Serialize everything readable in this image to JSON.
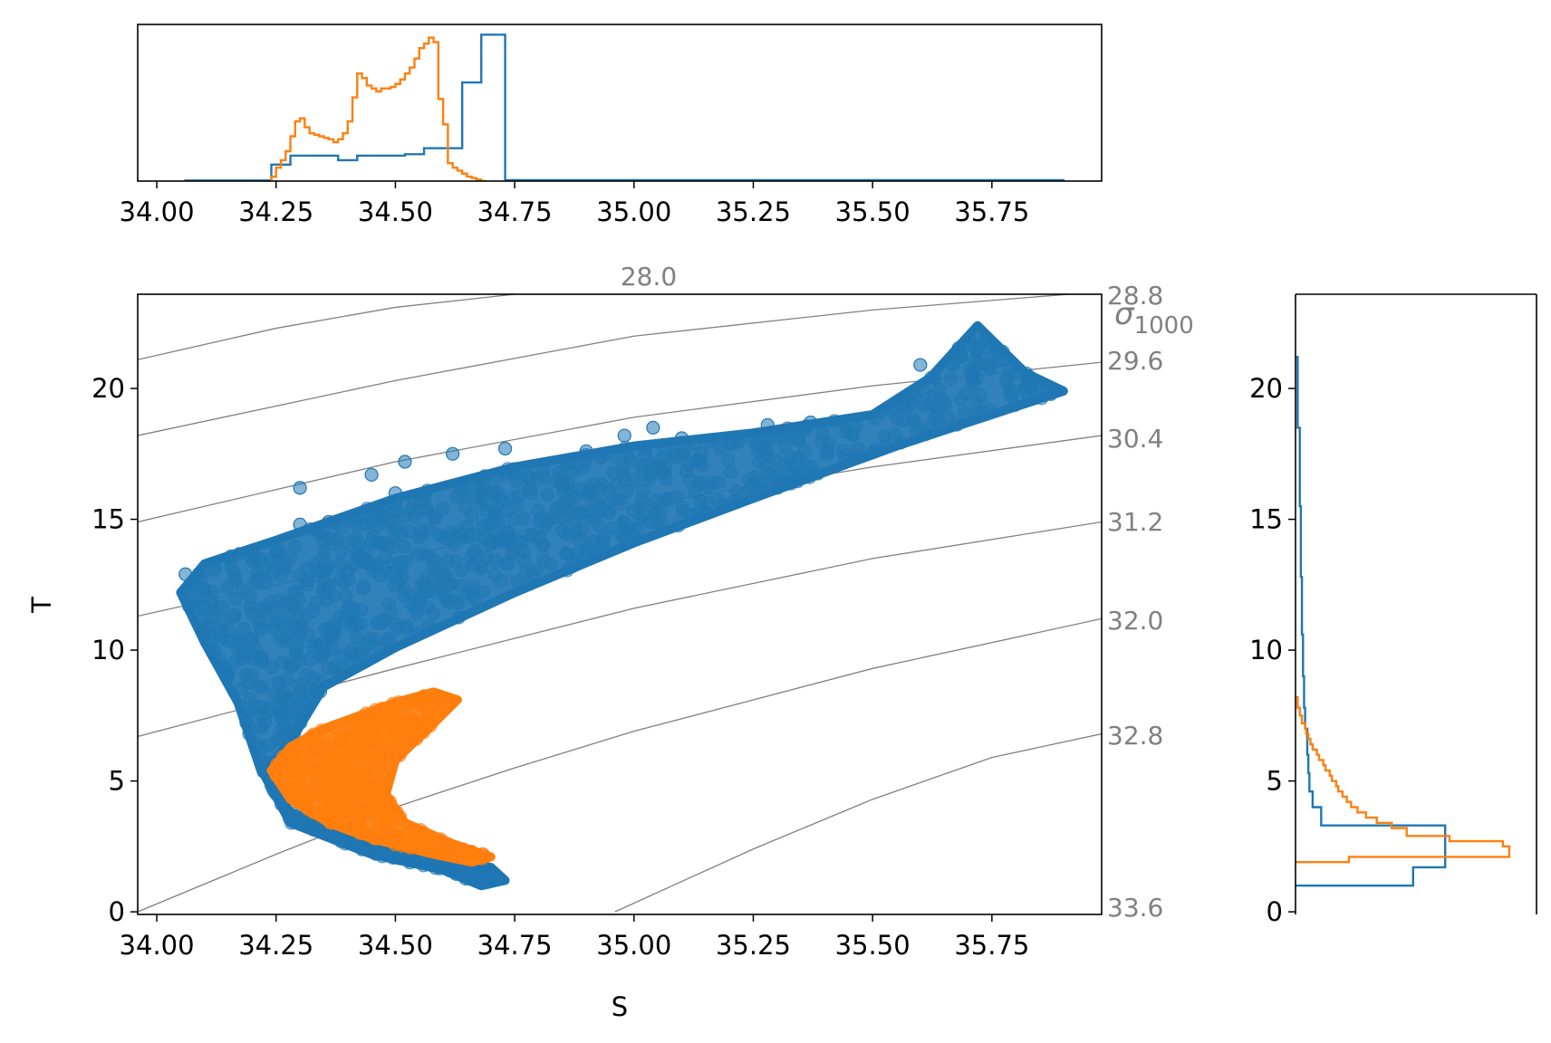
{
  "chart_data": [
    {
      "panel": "top-histogram",
      "type": "histogram",
      "xlim": [
        33.96,
        35.98
      ],
      "x_ticks": [
        "34.00",
        "34.25",
        "34.50",
        "34.75",
        "35.00",
        "35.25",
        "35.50",
        "35.75"
      ],
      "series": [
        {
          "color": "#1f77b4",
          "edges": [
            34.06,
            34.24,
            34.28,
            34.34,
            34.38,
            34.42,
            34.48,
            34.52,
            34.56,
            34.6,
            34.64,
            34.68,
            34.73,
            35.9
          ],
          "values": [
            0.004,
            0.11,
            0.17,
            0.17,
            0.14,
            0.17,
            0.17,
            0.18,
            0.22,
            0.22,
            0.66,
            0.98,
            0.006
          ]
        },
        {
          "color": "#ff7f0e",
          "edges": [
            34.24,
            34.25,
            34.26,
            34.27,
            34.28,
            34.29,
            34.3,
            34.31,
            34.32,
            34.33,
            34.34,
            34.35,
            34.36,
            34.37,
            34.38,
            34.39,
            34.4,
            34.41,
            34.42,
            34.43,
            34.44,
            34.45,
            34.46,
            34.47,
            34.48,
            34.49,
            34.5,
            34.51,
            34.52,
            34.53,
            34.54,
            34.55,
            34.56,
            34.57,
            34.58,
            34.59,
            34.6,
            34.61,
            34.62,
            34.63,
            34.64,
            34.65,
            34.66,
            34.67,
            34.68,
            34.69
          ],
          "values": [
            0.03,
            0.09,
            0.14,
            0.2,
            0.3,
            0.4,
            0.42,
            0.36,
            0.32,
            0.31,
            0.3,
            0.29,
            0.28,
            0.26,
            0.28,
            0.32,
            0.4,
            0.56,
            0.72,
            0.69,
            0.64,
            0.62,
            0.6,
            0.62,
            0.62,
            0.63,
            0.65,
            0.68,
            0.72,
            0.76,
            0.82,
            0.89,
            0.92,
            0.96,
            0.93,
            0.55,
            0.38,
            0.12,
            0.09,
            0.07,
            0.05,
            0.03,
            0.02,
            0.01,
            0.0
          ]
        }
      ]
    },
    {
      "panel": "ts-scatter",
      "type": "scatter",
      "xlabel": "S",
      "ylabel": "T",
      "xlim": [
        33.96,
        35.98
      ],
      "ylim": [
        -0.1,
        23.6
      ],
      "x_ticks": [
        "34.00",
        "34.25",
        "34.50",
        "34.75",
        "35.00",
        "35.25",
        "35.50",
        "35.75"
      ],
      "y_ticks": [
        "0",
        "5",
        "10",
        "15",
        "20"
      ],
      "density_axis_label": "σ",
      "density_axis_subscript": "1000",
      "density_contours": [
        {
          "label": "28.0",
          "points": [
            [
              33.96,
              21.1
            ],
            [
              34.25,
              22.3
            ],
            [
              34.5,
              23.1
            ],
            [
              34.75,
              23.6
            ]
          ]
        },
        {
          "label": "28.8",
          "points": [
            [
              33.96,
              18.2
            ],
            [
              34.5,
              20.3
            ],
            [
              35.0,
              22.0
            ],
            [
              35.5,
              23.0
            ],
            [
              35.98,
              23.7
            ]
          ]
        },
        {
          "label": "29.6",
          "points": [
            [
              33.96,
              14.9
            ],
            [
              34.5,
              17.2
            ],
            [
              35.0,
              18.9
            ],
            [
              35.5,
              20.1
            ],
            [
              35.98,
              21.0
            ]
          ]
        },
        {
          "label": "30.4",
          "points": [
            [
              33.96,
              11.3
            ],
            [
              34.5,
              13.5
            ],
            [
              35.0,
              15.5
            ],
            [
              35.5,
              17.0
            ],
            [
              35.98,
              18.2
            ]
          ]
        },
        {
          "label": "31.2",
          "points": [
            [
              33.96,
              6.7
            ],
            [
              34.5,
              9.3
            ],
            [
              35.0,
              11.6
            ],
            [
              35.5,
              13.5
            ],
            [
              35.98,
              14.9
            ]
          ]
        },
        {
          "label": "32.0",
          "points": [
            [
              33.96,
              0.0
            ],
            [
              34.25,
              2.2
            ],
            [
              34.5,
              4.0
            ],
            [
              34.75,
              5.5
            ],
            [
              35.0,
              6.9
            ],
            [
              35.5,
              9.3
            ],
            [
              35.98,
              11.2
            ]
          ]
        },
        {
          "label": "32.8",
          "points": [
            [
              34.96,
              0.0
            ],
            [
              35.25,
              2.4
            ],
            [
              35.5,
              4.3
            ],
            [
              35.75,
              5.9
            ],
            [
              35.98,
              6.8
            ]
          ]
        },
        {
          "label": "33.6",
          "points": []
        }
      ],
      "series": [
        {
          "color": "#1f77b4",
          "regions": [
            {
              "kind": "band",
              "points": [
                [
                  34.05,
                  12.2
                ],
                [
                  34.1,
                  13.3
                ],
                [
                  34.25,
                  14.2
                ],
                [
                  34.5,
                  15.8
                ],
                [
                  34.75,
                  17.0
                ],
                [
                  35.0,
                  17.8
                ],
                [
                  35.25,
                  18.3
                ],
                [
                  35.5,
                  19.0
                ],
                [
                  35.62,
                  20.4
                ],
                [
                  35.72,
                  22.4
                ],
                [
                  35.82,
                  20.6
                ],
                [
                  35.9,
                  19.9
                ],
                [
                  35.8,
                  19.3
                ],
                [
                  35.55,
                  17.8
                ],
                [
                  35.25,
                  15.8
                ],
                [
                  35.0,
                  14.1
                ],
                [
                  34.75,
                  12.2
                ],
                [
                  34.5,
                  10.1
                ],
                [
                  34.35,
                  8.6
                ],
                [
                  34.28,
                  6.5
                ],
                [
                  34.22,
                  5.3
                ],
                [
                  34.17,
                  8.0
                ],
                [
                  34.1,
                  10.3
                ]
              ]
            },
            {
              "kind": "tail",
              "points": [
                [
                  34.22,
                  5.4
                ],
                [
                  34.28,
                  3.8
                ],
                [
                  34.45,
                  2.7
                ],
                [
                  34.62,
                  2.0
                ],
                [
                  34.7,
                  1.7
                ],
                [
                  34.73,
                  1.2
                ],
                [
                  34.68,
                  1.0
                ],
                [
                  34.6,
                  1.6
                ],
                [
                  34.45,
                  2.2
                ],
                [
                  34.28,
                  3.4
                ]
              ]
            },
            {
              "kind": "outliers",
              "points": [
                [
                  35.6,
                  20.9
                ],
                [
                  35.63,
                  20.4
                ],
                [
                  35.56,
                  19.4
                ],
                [
                  35.37,
                  18.7
                ],
                [
                  35.28,
                  18.6
                ],
                [
                  35.04,
                  18.5
                ],
                [
                  34.98,
                  18.2
                ],
                [
                  34.73,
                  17.7
                ],
                [
                  34.62,
                  17.5
                ],
                [
                  34.52,
                  17.2
                ],
                [
                  34.45,
                  16.7
                ],
                [
                  34.3,
                  16.2
                ],
                [
                  34.36,
                  14.9
                ],
                [
                  34.06,
                  12.9
                ],
                [
                  34.1,
                  12.3
                ],
                [
                  34.3,
                  14.8
                ],
                [
                  34.5,
                  16.0
                ],
                [
                  34.9,
                  17.6
                ],
                [
                  35.1,
                  18.1
                ],
                [
                  35.2,
                  17.9
                ]
              ]
            }
          ]
        },
        {
          "color": "#ff7f0e",
          "regions": [
            {
              "kind": "band",
              "points": [
                [
                  34.24,
                  5.4
                ],
                [
                  34.28,
                  6.3
                ],
                [
                  34.35,
                  7.0
                ],
                [
                  34.44,
                  7.6
                ],
                [
                  34.5,
                  8.0
                ],
                [
                  34.58,
                  8.4
                ],
                [
                  34.63,
                  8.1
                ],
                [
                  34.58,
                  7.2
                ],
                [
                  34.5,
                  5.8
                ],
                [
                  34.48,
                  4.5
                ],
                [
                  34.52,
                  3.4
                ],
                [
                  34.62,
                  2.6
                ],
                [
                  34.7,
                  2.1
                ],
                [
                  34.66,
                  1.9
                ],
                [
                  34.58,
                  2.2
                ],
                [
                  34.45,
                  2.8
                ],
                [
                  34.36,
                  3.4
                ],
                [
                  34.28,
                  4.3
                ]
              ]
            }
          ]
        }
      ]
    },
    {
      "panel": "right-histogram",
      "type": "histogram",
      "orientation": "horizontal",
      "ylim": [
        -0.1,
        23.6
      ],
      "y_ticks": [
        "0",
        "5",
        "10",
        "15",
        "20"
      ],
      "series": [
        {
          "color": "#1f77b4",
          "edges": [
            1.0,
            1.7,
            2.4,
            3.3,
            4.0,
            4.6,
            5.3,
            6.0,
            7.0,
            7.8,
            9.0,
            10.6,
            12.8,
            15.5,
            18.5,
            21.2
          ],
          "values": [
            0.55,
            0.7,
            0.7,
            0.12,
            0.08,
            0.065,
            0.06,
            0.055,
            0.045,
            0.04,
            0.035,
            0.03,
            0.025,
            0.02,
            0.01
          ]
        },
        {
          "color": "#ff7f0e",
          "edges": [
            1.9,
            2.1,
            2.5,
            2.7,
            2.9,
            3.2,
            3.4,
            3.6,
            3.8,
            4.0,
            4.2,
            4.4,
            4.6,
            4.8,
            5.0,
            5.2,
            5.4,
            5.6,
            5.8,
            6.0,
            6.2,
            6.4,
            6.6,
            6.8,
            7.0,
            7.2,
            7.5,
            7.8,
            8.2
          ],
          "values": [
            0.25,
            1.0,
            0.97,
            0.72,
            0.52,
            0.45,
            0.38,
            0.33,
            0.29,
            0.26,
            0.24,
            0.22,
            0.2,
            0.19,
            0.17,
            0.16,
            0.14,
            0.13,
            0.11,
            0.1,
            0.08,
            0.07,
            0.06,
            0.05,
            0.045,
            0.03,
            0.02,
            0.01
          ]
        }
      ]
    }
  ]
}
